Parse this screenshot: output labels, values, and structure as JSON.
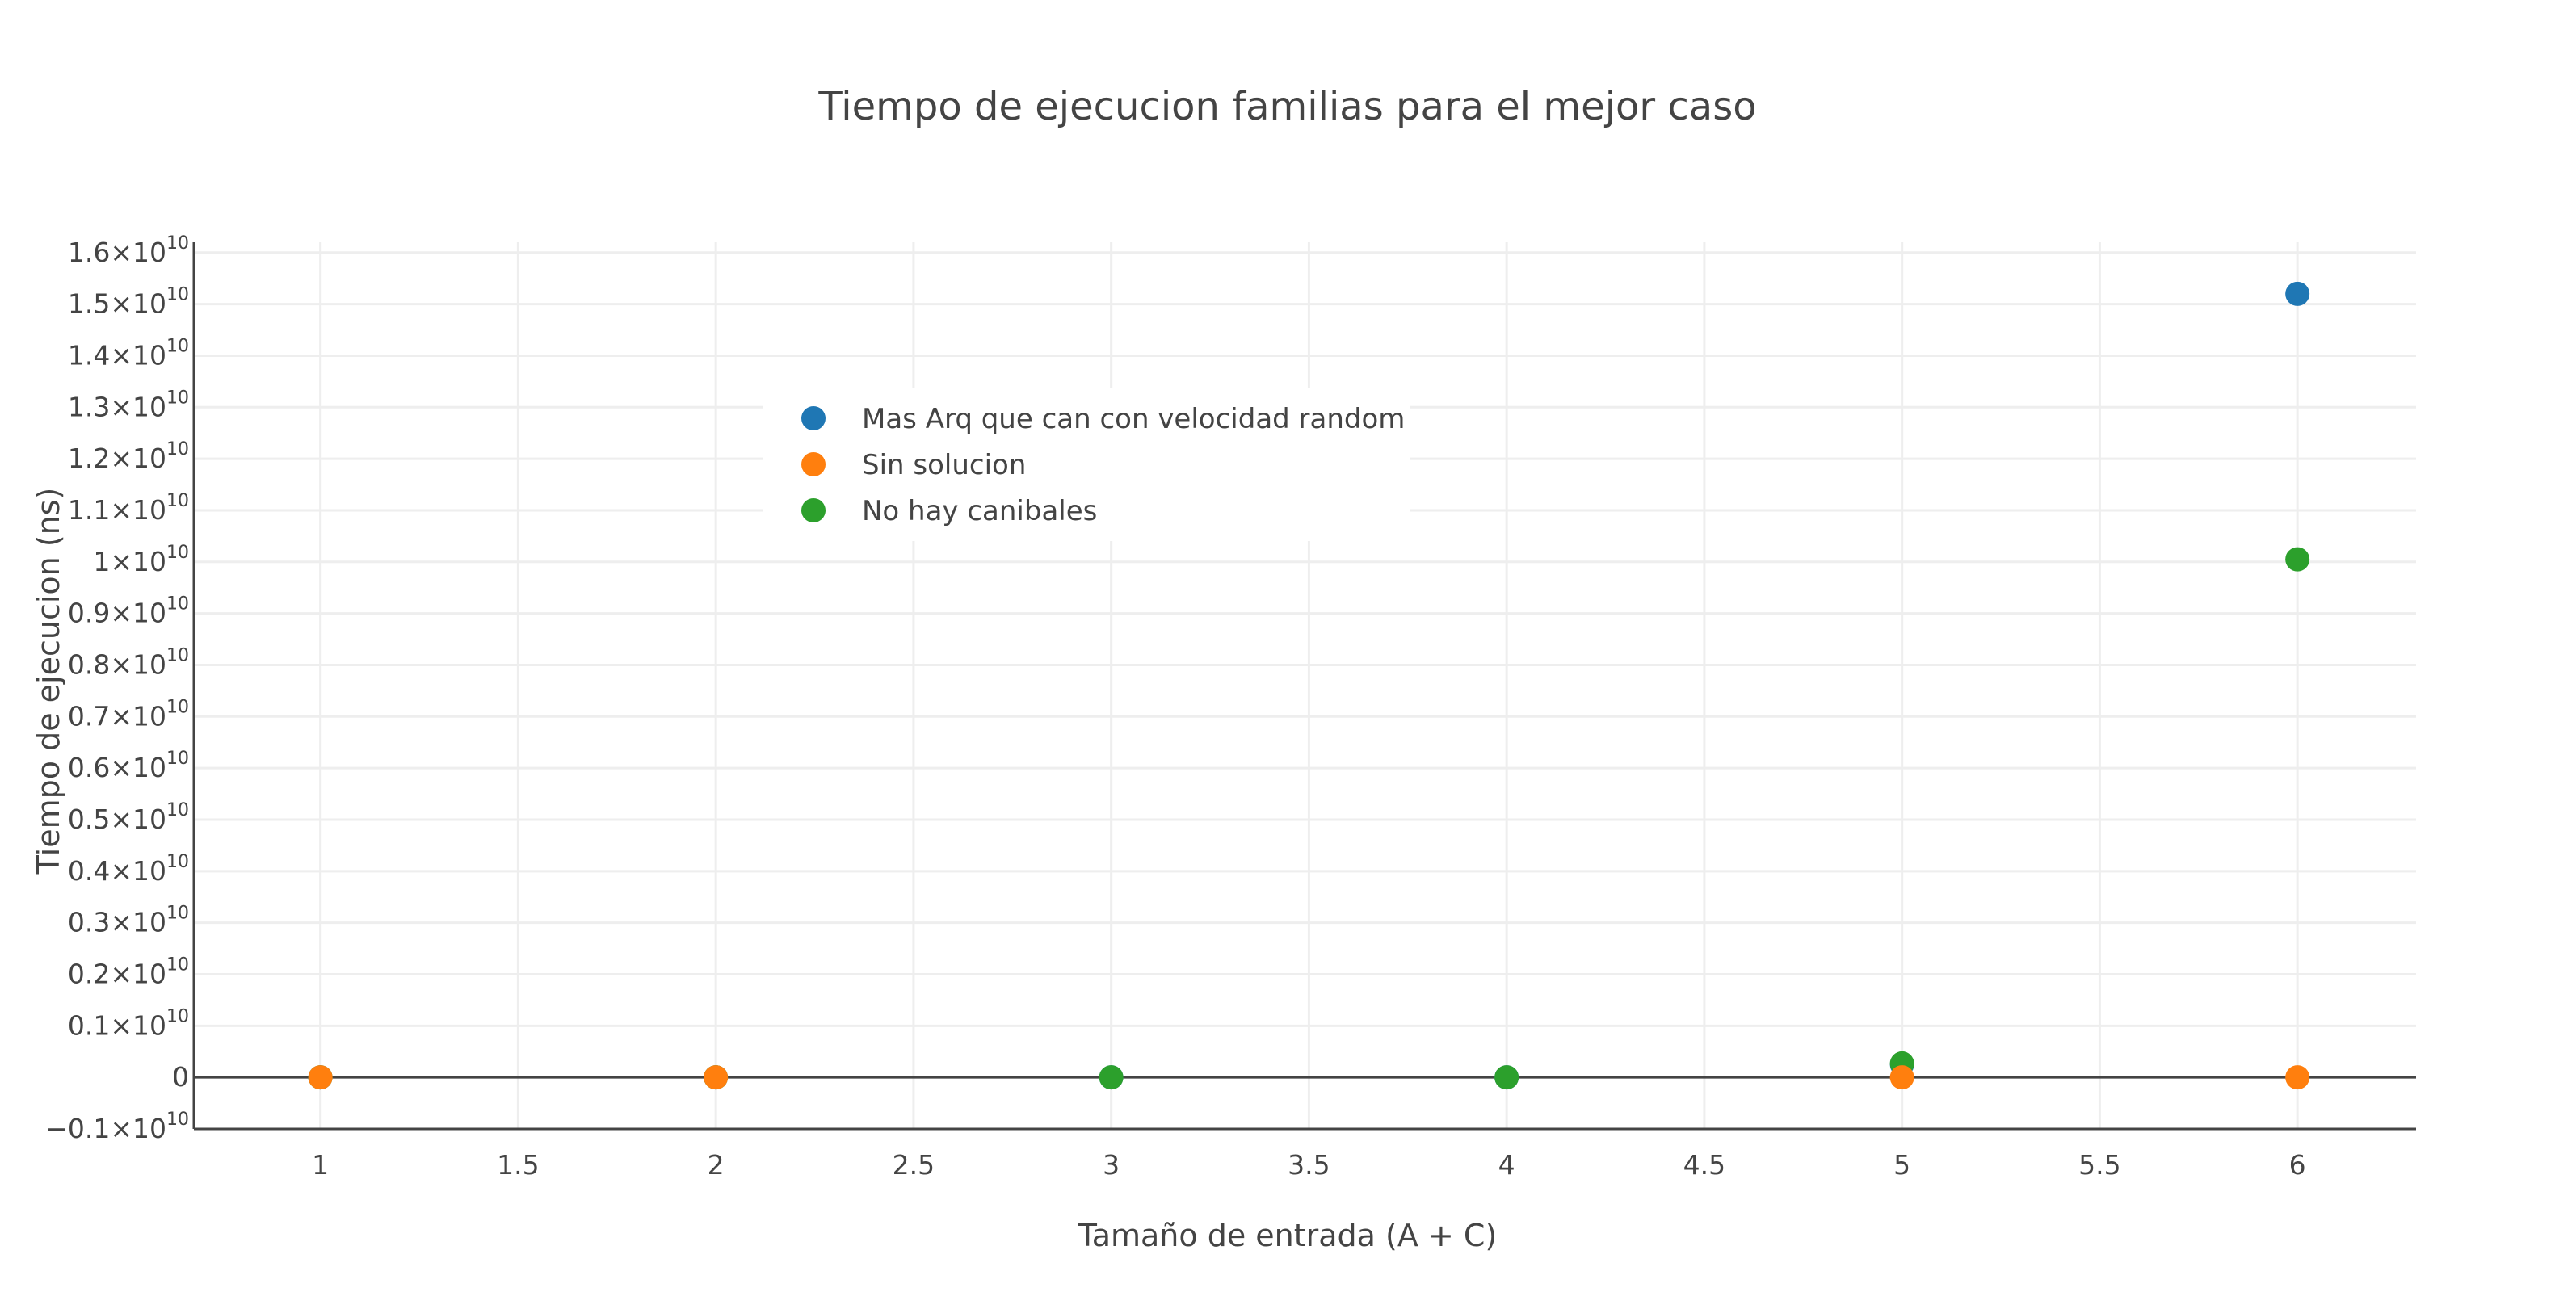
{
  "chart_data": {
    "type": "scatter",
    "title": "Tiempo de ejecucion familias para el mejor caso",
    "xlabel": "Tamaño de entrada (A + C)",
    "ylabel": "Tiempo de ejecucion (ns)",
    "xlim": [
      0.68,
      6.3
    ],
    "ylim": [
      -0.1,
      1.62
    ],
    "y_unit_exponent": "10",
    "x_ticks": [
      "1",
      "1.5",
      "2",
      "2.5",
      "3",
      "3.5",
      "4",
      "4.5",
      "5",
      "5.5",
      "6"
    ],
    "y_ticks": [
      {
        "value": -0.1,
        "mantissa": "−0.1×10",
        "exp": "10"
      },
      {
        "value": 0,
        "mantissa": "0",
        "exp": ""
      },
      {
        "value": 0.1,
        "mantissa": "0.1×10",
        "exp": "10"
      },
      {
        "value": 0.2,
        "mantissa": "0.2×10",
        "exp": "10"
      },
      {
        "value": 0.3,
        "mantissa": "0.3×10",
        "exp": "10"
      },
      {
        "value": 0.4,
        "mantissa": "0.4×10",
        "exp": "10"
      },
      {
        "value": 0.5,
        "mantissa": "0.5×10",
        "exp": "10"
      },
      {
        "value": 0.6,
        "mantissa": "0.6×10",
        "exp": "10"
      },
      {
        "value": 0.7,
        "mantissa": "0.7×10",
        "exp": "10"
      },
      {
        "value": 0.8,
        "mantissa": "0.8×10",
        "exp": "10"
      },
      {
        "value": 0.9,
        "mantissa": "0.9×10",
        "exp": "10"
      },
      {
        "value": 1.0,
        "mantissa": "1×10",
        "exp": "10"
      },
      {
        "value": 1.1,
        "mantissa": "1.1×10",
        "exp": "10"
      },
      {
        "value": 1.2,
        "mantissa": "1.2×10",
        "exp": "10"
      },
      {
        "value": 1.3,
        "mantissa": "1.3×10",
        "exp": "10"
      },
      {
        "value": 1.4,
        "mantissa": "1.4×10",
        "exp": "10"
      },
      {
        "value": 1.5,
        "mantissa": "1.5×10",
        "exp": "10"
      },
      {
        "value": 1.6,
        "mantissa": "1.6×10",
        "exp": "10"
      }
    ],
    "grid": true,
    "legend_position": "top-left inside plot",
    "series": [
      {
        "name": "Mas Arq que can con velocidad random",
        "color": "#1f77b4",
        "points": [
          {
            "x": 1,
            "y": 0.0
          },
          {
            "x": 2,
            "y": 0.0
          },
          {
            "x": 3,
            "y": 0.0
          },
          {
            "x": 4,
            "y": 0.0
          },
          {
            "x": 5,
            "y": 0.025
          },
          {
            "x": 6,
            "y": 1.52
          }
        ]
      },
      {
        "name": "No hay canibales",
        "color": "#2ca02c",
        "points": [
          {
            "x": 1,
            "y": 0.0
          },
          {
            "x": 2,
            "y": 0.0
          },
          {
            "x": 3,
            "y": 0.0
          },
          {
            "x": 4,
            "y": 0.0
          },
          {
            "x": 5,
            "y": 0.027
          },
          {
            "x": 6,
            "y": 1.005
          }
        ]
      },
      {
        "name": "Sin solucion",
        "color": "#ff7f0e",
        "points": [
          {
            "x": 1,
            "y": 0.0
          },
          {
            "x": 2,
            "y": 0.0
          },
          {
            "x": 5,
            "y": 0.0
          },
          {
            "x": 6,
            "y": 0.0
          }
        ]
      }
    ],
    "legend_order": [
      "Mas Arq que can con velocidad random",
      "Sin solucion",
      "No hay canibales"
    ]
  }
}
